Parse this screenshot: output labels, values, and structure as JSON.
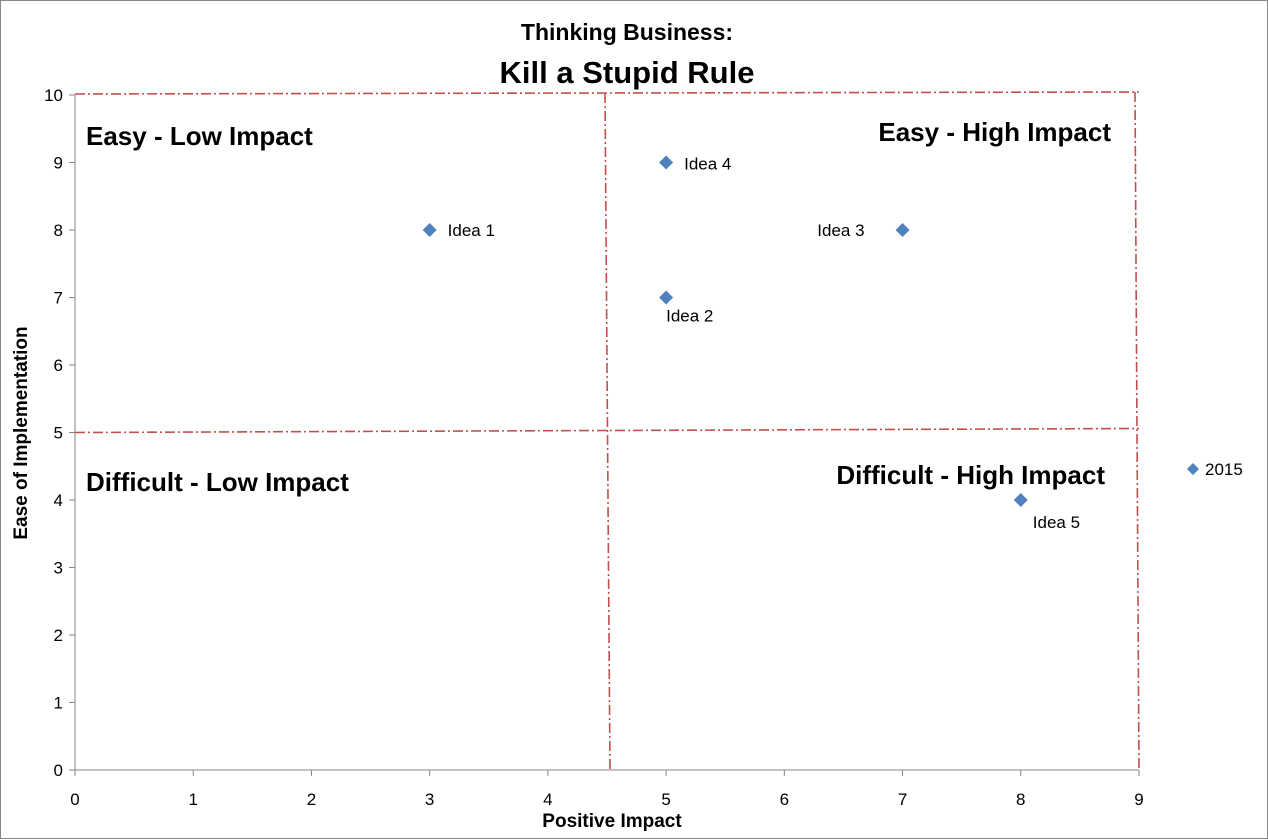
{
  "chart_data": {
    "type": "scatter",
    "title_line1": "Thinking Business:",
    "title_line2": "Kill a Stupid Rule",
    "xlabel": "Positive Impact",
    "ylabel": "Ease of Implementation",
    "xlim": [
      0,
      9
    ],
    "ylim": [
      0,
      10
    ],
    "xticks": [
      0,
      1,
      2,
      3,
      4,
      5,
      6,
      7,
      8,
      9
    ],
    "yticks": [
      0,
      1,
      2,
      3,
      4,
      5,
      6,
      7,
      8,
      9,
      10
    ],
    "grid": false,
    "marker_color": "#4F81BD",
    "divider_color": "#C0504D",
    "points": [
      {
        "label": "Idea 1",
        "x": 3,
        "y": 8
      },
      {
        "label": "Idea 4",
        "x": 5,
        "y": 9
      },
      {
        "label": "Idea 3",
        "x": 7,
        "y": 8
      },
      {
        "label": "Idea 2",
        "x": 5,
        "y": 7
      },
      {
        "label": "Idea 5",
        "x": 8,
        "y": 4
      }
    ],
    "quadrants": {
      "top_left": "Easy - Low Impact",
      "top_right": "Easy - High Impact",
      "bottom_left": "Difficult - Low Impact",
      "bottom_right": "Difficult - High Impact"
    },
    "dividers": {
      "x": 4.5,
      "y": 5
    },
    "legend": {
      "label": "2015",
      "placement": "right"
    }
  }
}
